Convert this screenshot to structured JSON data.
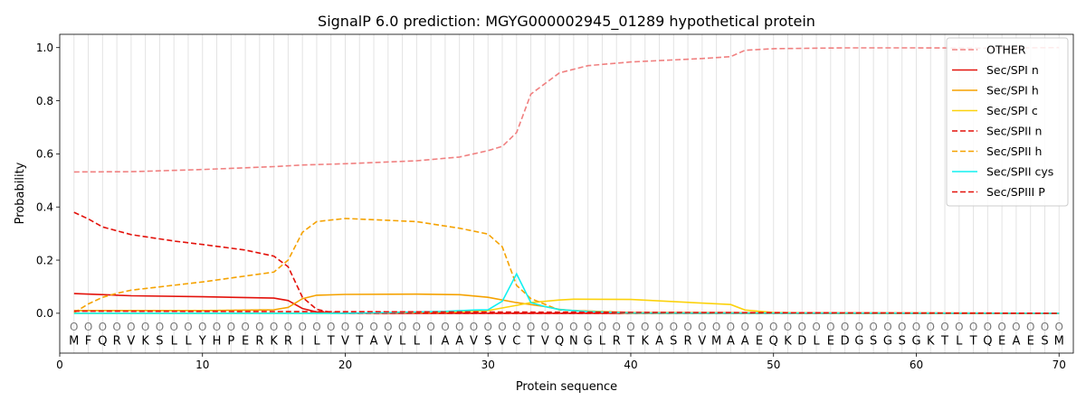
{
  "chart_data": {
    "type": "line",
    "title": "SignalP 6.0 prediction: MGYG000002945_01289 hypothetical protein",
    "xlabel": "Protein sequence",
    "ylabel": "Probability",
    "xlim": [
      0,
      71
    ],
    "ylim": [
      -0.15,
      1.05
    ],
    "xticks": [
      0,
      10,
      20,
      30,
      40,
      50,
      60,
      70
    ],
    "yticks": [
      0.0,
      0.2,
      0.4,
      0.6,
      0.8,
      1.0
    ],
    "grid": "vertical lines at each residue",
    "legend_position": "top-right",
    "sequence": [
      "M",
      "F",
      "Q",
      "R",
      "V",
      "K",
      "S",
      "L",
      "L",
      "Y",
      "H",
      "P",
      "E",
      "R",
      "K",
      "R",
      "I",
      "L",
      "T",
      "V",
      "T",
      "A",
      "V",
      "L",
      "L",
      "I",
      "A",
      "A",
      "V",
      "S",
      "V",
      "C",
      "T",
      "V",
      "Q",
      "N",
      "G",
      "L",
      "R",
      "T",
      "K",
      "A",
      "S",
      "R",
      "V",
      "M",
      "A",
      "A",
      "E",
      "Q",
      "K",
      "D",
      "L",
      "E",
      "D",
      "G",
      "S",
      "G",
      "S",
      "G",
      "K",
      "T",
      "L",
      "T",
      "Q",
      "E",
      "A",
      "E",
      "S",
      "M"
    ],
    "region_marker": "O",
    "series": [
      {
        "name": "OTHER",
        "color": "#f08080",
        "dash": "dashed",
        "x": [
          1,
          5,
          10,
          15,
          17,
          20,
          25,
          28,
          30,
          31,
          32,
          33,
          35,
          37,
          40,
          45,
          47,
          48,
          50,
          55,
          60,
          65,
          70
        ],
        "y": [
          0.532,
          0.533,
          0.541,
          0.552,
          0.558,
          0.563,
          0.574,
          0.588,
          0.612,
          0.628,
          0.68,
          0.825,
          0.905,
          0.932,
          0.946,
          0.959,
          0.966,
          0.99,
          0.996,
          0.999,
          0.999,
          0.998,
          1.0
        ]
      },
      {
        "name": "Sec/SPI n",
        "color": "#e3120b",
        "dash": "solid",
        "x": [
          1,
          5,
          10,
          15,
          16,
          17,
          18,
          19,
          20,
          70
        ],
        "y": [
          0.074,
          0.066,
          0.062,
          0.057,
          0.048,
          0.018,
          0.005,
          0.001,
          0.0,
          0.0
        ]
      },
      {
        "name": "Sec/SPI h",
        "color": "#f5a200",
        "dash": "solid",
        "x": [
          1,
          10,
          15,
          16,
          17,
          18,
          20,
          25,
          28,
          30,
          32,
          34,
          35,
          36,
          40,
          70
        ],
        "y": [
          0.01,
          0.01,
          0.013,
          0.022,
          0.055,
          0.068,
          0.071,
          0.072,
          0.07,
          0.06,
          0.04,
          0.025,
          0.015,
          0.01,
          0.003,
          0.0
        ]
      },
      {
        "name": "Sec/SPI c",
        "color": "#fcd20c",
        "dash": "solid",
        "x": [
          1,
          20,
          28,
          30,
          31,
          32,
          33,
          35,
          36,
          40,
          47,
          48,
          50,
          55,
          70
        ],
        "y": [
          0.0,
          0.0,
          0.005,
          0.01,
          0.02,
          0.03,
          0.04,
          0.05,
          0.053,
          0.052,
          0.033,
          0.012,
          0.003,
          0.0,
          0.0
        ]
      },
      {
        "name": "Sec/SPII n",
        "color": "#e3120b",
        "dash": "dashed",
        "x": [
          1,
          2,
          3,
          5,
          8,
          10,
          13,
          15,
          16,
          17,
          18,
          19,
          20,
          70
        ],
        "y": [
          0.38,
          0.355,
          0.325,
          0.296,
          0.272,
          0.259,
          0.238,
          0.215,
          0.175,
          0.06,
          0.015,
          0.003,
          0.0,
          0.0
        ]
      },
      {
        "name": "Sec/SPII h",
        "color": "#f5a200",
        "dash": "dashed",
        "x": [
          1,
          2,
          3,
          4,
          5,
          10,
          15,
          16,
          17,
          18,
          20,
          25,
          28,
          30,
          31,
          32,
          33,
          35,
          40,
          70
        ],
        "y": [
          0.002,
          0.035,
          0.06,
          0.075,
          0.087,
          0.118,
          0.155,
          0.2,
          0.305,
          0.345,
          0.357,
          0.345,
          0.32,
          0.298,
          0.25,
          0.105,
          0.055,
          0.012,
          0.0,
          0.0
        ]
      },
      {
        "name": "Sec/SPII cys",
        "color": "#11f0f0",
        "dash": "solid",
        "x": [
          1,
          20,
          27,
          29,
          30,
          31,
          32,
          33,
          34,
          35,
          37,
          40,
          70
        ],
        "y": [
          0.0,
          0.0,
          0.007,
          0.012,
          0.013,
          0.045,
          0.148,
          0.04,
          0.025,
          0.014,
          0.006,
          0.001,
          0.0
        ]
      },
      {
        "name": "Sec/SPIII P",
        "color": "#e3120b",
        "dash": "dashed",
        "x": [
          1,
          70
        ],
        "y": [
          0.008,
          0.0
        ]
      }
    ]
  }
}
